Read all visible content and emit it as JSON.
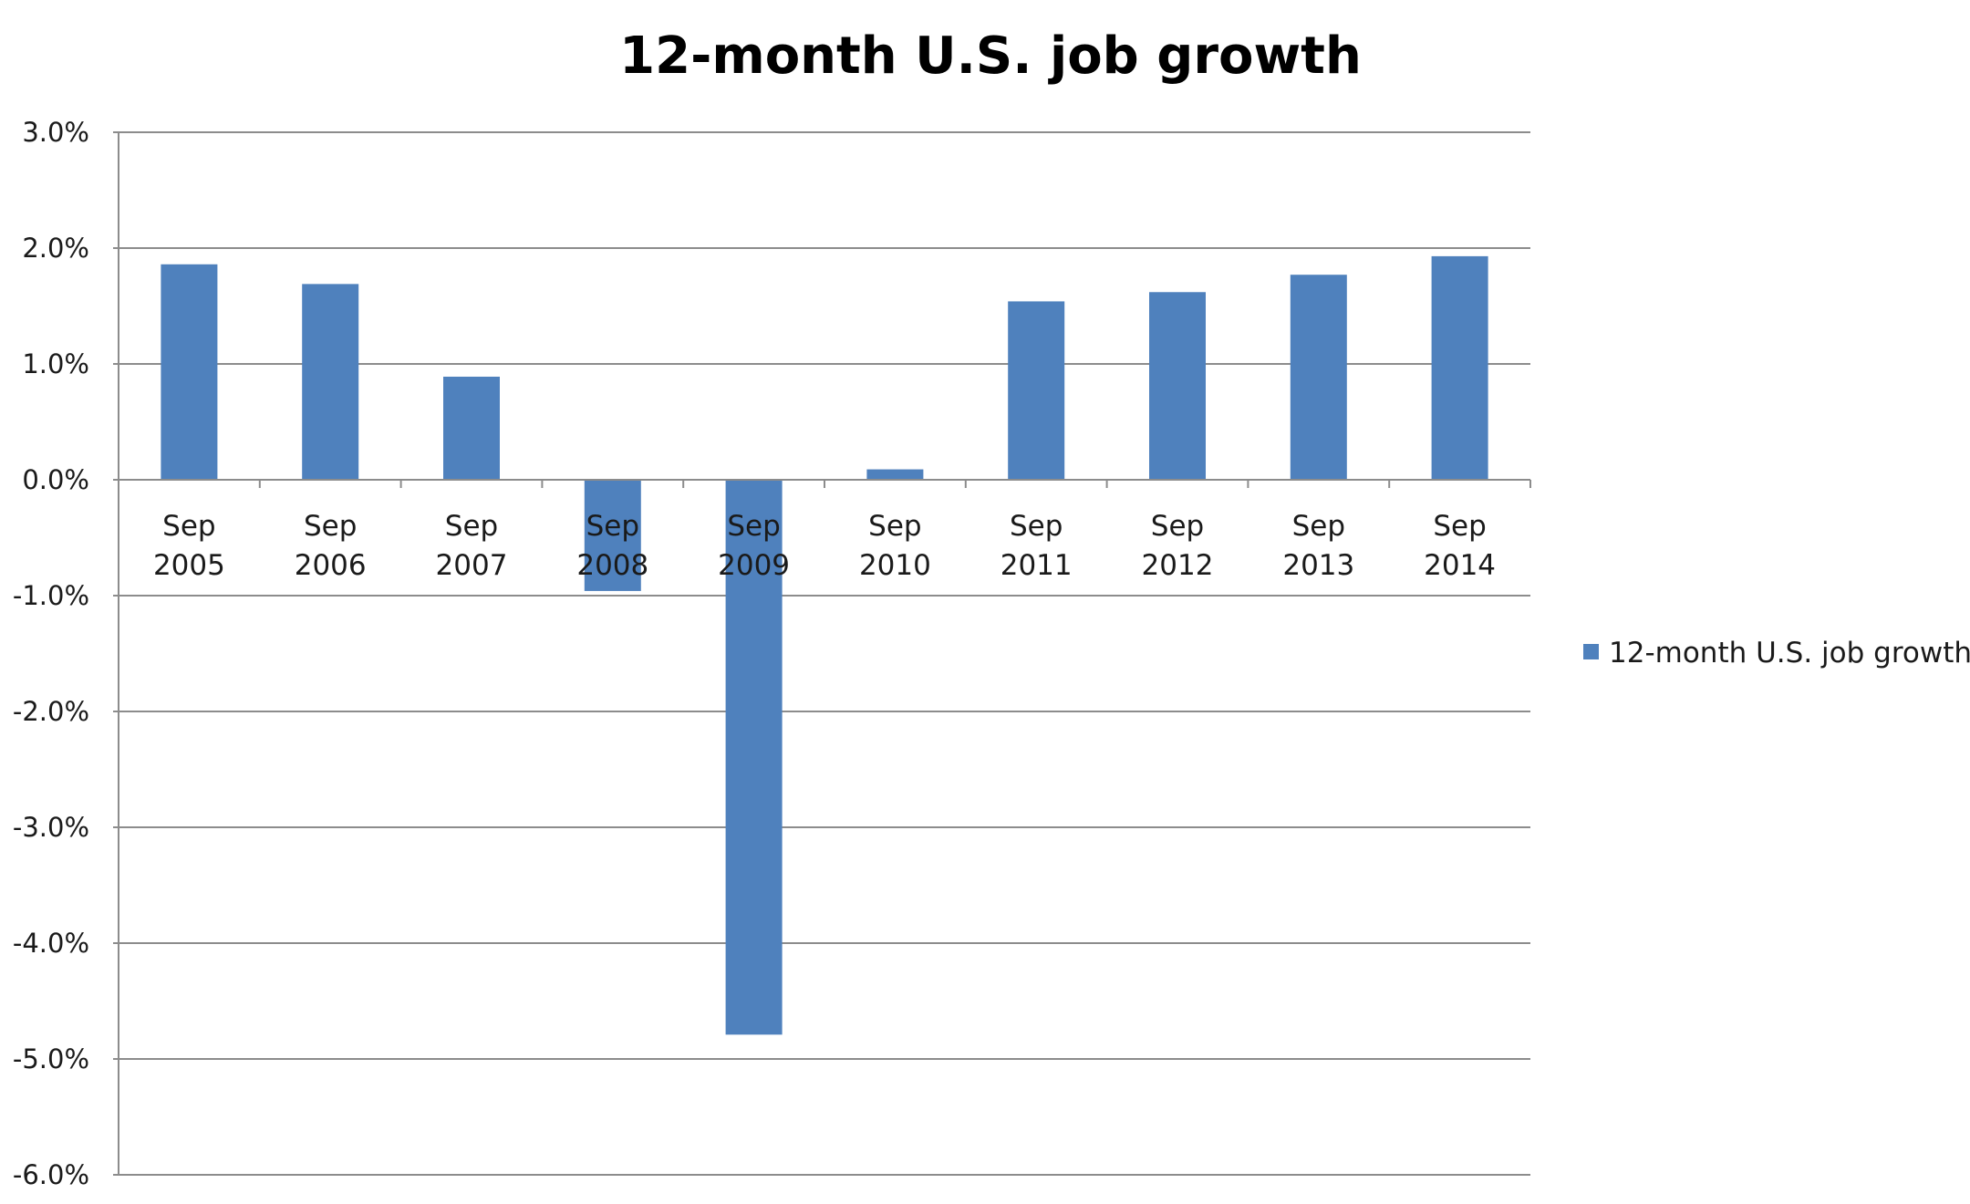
{
  "chart_data": {
    "type": "bar",
    "title": "12-month U.S. job growth",
    "xlabel": "",
    "ylabel": "",
    "categories": [
      [
        "Sep",
        "2005"
      ],
      [
        "Sep",
        "2006"
      ],
      [
        "Sep",
        "2007"
      ],
      [
        "Sep",
        "2008"
      ],
      [
        "Sep",
        "2009"
      ],
      [
        "Sep",
        "2010"
      ],
      [
        "Sep",
        "2011"
      ],
      [
        "Sep",
        "2012"
      ],
      [
        "Sep",
        "2013"
      ],
      [
        "Sep",
        "2014"
      ]
    ],
    "series": [
      {
        "name": "12-month U.S. job growth",
        "values": [
          1.86,
          1.69,
          0.89,
          -0.96,
          -4.79,
          0.09,
          1.54,
          1.62,
          1.77,
          1.93
        ],
        "color": "#4F81BD"
      }
    ],
    "y_ticks": [
      3.0,
      2.0,
      1.0,
      0.0,
      -1.0,
      -2.0,
      -3.0,
      -4.0,
      -5.0,
      -6.0
    ],
    "y_tick_labels": [
      "3.0%",
      "2.0%",
      "1.0%",
      "0.0%",
      "-1.0%",
      "-2.0%",
      "-3.0%",
      "-4.0%",
      "-5.0%",
      "-6.0%"
    ],
    "ylim": [
      -6.0,
      3.0
    ],
    "grid": true,
    "legend_position": "right",
    "colors": {
      "bar": "#4F81BD",
      "grid": "#8c8c8c",
      "axis": "#8c8c8c",
      "text": "#1a1a1a"
    }
  }
}
